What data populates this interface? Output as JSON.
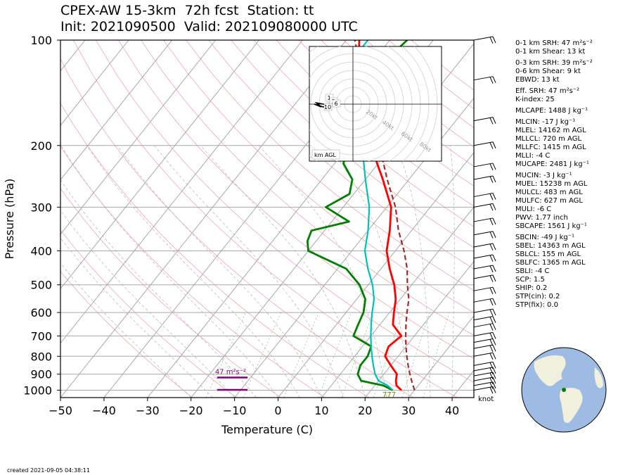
{
  "title": {
    "line1": "CPEX-AW 15-3km  72h fcst  Station: tt",
    "line2": "Init: 2021090500  Valid: 202109080000 UTC"
  },
  "footer": {
    "created": "created 2021-09-05 04:38:11"
  },
  "params": [
    {
      "text": "0-1 km SRH: 47 m²s⁻²"
    },
    {
      "text": "0-1 km Shear: 13 kt"
    },
    {
      "text": "0-3 km SRH: 39 m²s⁻²",
      "gap": true
    },
    {
      "text": "0-6 km Shear: 9 kt"
    },
    {
      "text": "EBWD: 13 kt"
    },
    {
      "text": "Eff. SRH: 47 m²s⁻²",
      "gap": true
    },
    {
      "text": "K-index: 25"
    },
    {
      "text": "MLCAPE: 1488 J kg⁻¹",
      "gap": true
    },
    {
      "text": "MLCIN: -17 J kg⁻¹",
      "gap": true
    },
    {
      "text": "MLEL: 14162 m AGL"
    },
    {
      "text": "MLLCL: 720 m AGL"
    },
    {
      "text": "MLLFC: 1415 m AGL"
    },
    {
      "text": "MLLI: -4 C"
    },
    {
      "text": "MUCAPE: 2481 J kg⁻¹"
    },
    {
      "text": "MUCIN: -3 J kg⁻¹",
      "gap": true
    },
    {
      "text": "MUEL: 15238 m AGL"
    },
    {
      "text": "MULCL: 483 m AGL"
    },
    {
      "text": "MULFC: 627 m AGL"
    },
    {
      "text": "MULI: -6 C"
    },
    {
      "text": "PWV: 1.77 inch"
    },
    {
      "text": "SBCAPE: 1561 J kg⁻¹"
    },
    {
      "text": "SBCIN: -49 J kg⁻¹",
      "gap": true
    },
    {
      "text": "SBEL: 14363 m AGL"
    },
    {
      "text": "SBLCL: 155 m AGL"
    },
    {
      "text": "SBLFC: 1365 m AGL"
    },
    {
      "text": "SBLI: -4 C"
    },
    {
      "text": "SCP: 1.5"
    },
    {
      "text": "SHIP: 0.2"
    },
    {
      "text": "STP(cin): 0.2"
    },
    {
      "text": "STP(fix): 0.0"
    }
  ],
  "chart_data": {
    "type": "line",
    "xlabel": "Temperature (C)",
    "ylabel": "Pressure (hPa)",
    "xlim": [
      -50,
      45
    ],
    "ylim": [
      1050,
      100
    ],
    "yscale": "log",
    "xticks": [
      -50,
      -40,
      -30,
      -20,
      -10,
      0,
      10,
      20,
      30,
      40
    ],
    "yticks": [
      100,
      200,
      300,
      400,
      500,
      600,
      700,
      800,
      900,
      1000
    ],
    "grid": true,
    "series": [
      {
        "role": "temperature",
        "color": "#ff0000",
        "points": [
          [
            27,
            1000
          ],
          [
            25,
            970
          ],
          [
            24,
            940
          ],
          [
            23,
            900
          ],
          [
            20,
            850
          ],
          [
            17,
            800
          ],
          [
            16,
            750
          ],
          [
            17,
            700
          ],
          [
            13,
            650
          ],
          [
            11,
            600
          ],
          [
            9,
            550
          ],
          [
            6,
            500
          ],
          [
            2,
            450
          ],
          [
            -2,
            400
          ],
          [
            -5,
            350
          ],
          [
            -9,
            300
          ],
          [
            -16,
            250
          ],
          [
            -25,
            200
          ],
          [
            -36,
            150
          ],
          [
            -47,
            100
          ]
        ]
      },
      {
        "role": "dewpoint",
        "color": "#008000",
        "points": [
          [
            25,
            1000
          ],
          [
            22,
            970
          ],
          [
            16,
            940
          ],
          [
            14,
            900
          ],
          [
            13,
            850
          ],
          [
            13,
            800
          ],
          [
            12,
            750
          ],
          [
            6,
            700
          ],
          [
            5,
            650
          ],
          [
            4,
            600
          ],
          [
            2,
            550
          ],
          [
            -2,
            500
          ],
          [
            -8,
            450
          ],
          [
            -20,
            400
          ],
          [
            -22,
            375
          ],
          [
            -23,
            350
          ],
          [
            -16,
            330
          ],
          [
            -24,
            300
          ],
          [
            -21,
            275
          ],
          [
            -23,
            250
          ],
          [
            -28,
            225
          ],
          [
            -30,
            200
          ],
          [
            -35,
            150
          ],
          [
            -38,
            125
          ],
          [
            -36,
            100
          ]
        ]
      },
      {
        "role": "wet-bulb",
        "color": "#00bfbf",
        "points": [
          [
            25,
            1000
          ],
          [
            23,
            970
          ],
          [
            20,
            940
          ],
          [
            18,
            900
          ],
          [
            16,
            850
          ],
          [
            14,
            800
          ],
          [
            12,
            750
          ],
          [
            10,
            700
          ],
          [
            8,
            650
          ],
          [
            6,
            600
          ],
          [
            4,
            550
          ],
          [
            1,
            500
          ],
          [
            -3,
            450
          ],
          [
            -7,
            400
          ],
          [
            -10,
            350
          ],
          [
            -14,
            300
          ],
          [
            -20,
            250
          ],
          [
            -27,
            200
          ],
          [
            -37,
            150
          ],
          [
            -45,
            125
          ],
          [
            -45,
            100
          ]
        ]
      },
      {
        "role": "parcel-path",
        "color": "#a52a2a",
        "dashed": true,
        "points": [
          [
            30,
            1000
          ],
          [
            28,
            950
          ],
          [
            26,
            900
          ],
          [
            24,
            850
          ],
          [
            22,
            800
          ],
          [
            20,
            750
          ],
          [
            18,
            700
          ],
          [
            16,
            650
          ],
          [
            14,
            600
          ],
          [
            12,
            550
          ],
          [
            9,
            500
          ],
          [
            6,
            450
          ],
          [
            2,
            400
          ],
          [
            -3,
            350
          ],
          [
            -8,
            300
          ],
          [
            -15,
            250
          ],
          [
            -23,
            200
          ],
          [
            -34,
            150
          ],
          [
            -48,
            100
          ]
        ]
      }
    ],
    "annotations": [
      {
        "text": "47 m²s⁻²",
        "color": "#800080"
      },
      {
        "text": "777",
        "color": "#808000"
      },
      {
        "text": "knot"
      }
    ],
    "srh_markers": [
      {
        "x_range": [
          -14,
          -7
        ],
        "pressure": 920,
        "color": "#800080"
      },
      {
        "x_range": [
          -14,
          -7
        ],
        "pressure": 998,
        "color": "#800080"
      }
    ],
    "hodograph": {
      "labels": [
        "1",
        "3",
        "6",
        "10"
      ],
      "ring_labels": [
        "20kt",
        "40kt",
        "60kt",
        "80kt"
      ],
      "footer": "km AGL"
    },
    "globe_marker": {
      "lat": 10.5,
      "lon": -61.3
    }
  }
}
